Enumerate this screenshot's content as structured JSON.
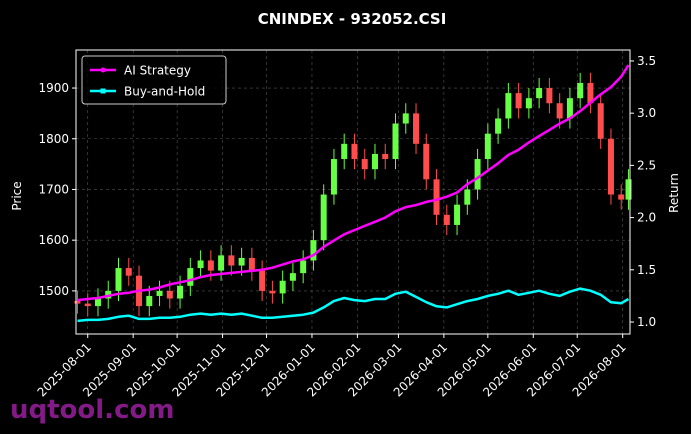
{
  "chart_data": {
    "type": "candlestick",
    "title": "CNINDEX - 932052.CSI",
    "ylabel": "Price",
    "y2label": "Return",
    "watermark": "uqtool.com",
    "x": [
      "2025-07-25",
      "2025-08-01",
      "2025-08-08",
      "2025-08-15",
      "2025-08-22",
      "2025-08-29",
      "2025-09-05",
      "2025-09-12",
      "2025-09-19",
      "2025-09-26",
      "2025-10-03",
      "2025-10-10",
      "2025-10-17",
      "2025-10-24",
      "2025-10-31",
      "2025-11-07",
      "2025-11-14",
      "2025-11-21",
      "2025-11-28",
      "2025-12-05",
      "2025-12-12",
      "2025-12-19",
      "2025-12-26",
      "2026-01-02",
      "2026-01-09",
      "2026-01-16",
      "2026-01-23",
      "2026-01-30",
      "2026-02-06",
      "2026-02-13",
      "2026-02-20",
      "2026-02-27",
      "2026-03-06",
      "2026-03-13",
      "2026-03-20",
      "2026-03-27",
      "2026-04-03",
      "2026-04-10",
      "2026-04-17",
      "2026-04-24",
      "2026-05-01",
      "2026-05-08",
      "2026-05-15",
      "2026-05-22",
      "2026-05-29",
      "2026-06-05",
      "2026-06-12",
      "2026-06-19",
      "2026-06-26",
      "2026-07-03",
      "2026-07-10",
      "2026-07-17",
      "2026-07-24",
      "2026-07-31",
      "2026-08-05"
    ],
    "open": [
      1480,
      1475,
      1470,
      1485,
      1500,
      1545,
      1530,
      1470,
      1490,
      1500,
      1485,
      1510,
      1545,
      1560,
      1540,
      1570,
      1550,
      1565,
      1540,
      1500,
      1495,
      1520,
      1535,
      1560,
      1600,
      1690,
      1760,
      1790,
      1760,
      1740,
      1770,
      1760,
      1830,
      1850,
      1790,
      1720,
      1650,
      1630,
      1670,
      1700,
      1760,
      1810,
      1840,
      1890,
      1860,
      1880,
      1900,
      1870,
      1840,
      1880,
      1910,
      1870,
      1800,
      1690,
      1680
    ],
    "high": [
      1500,
      1495,
      1505,
      1520,
      1565,
      1565,
      1550,
      1510,
      1520,
      1520,
      1530,
      1565,
      1580,
      1580,
      1590,
      1590,
      1585,
      1585,
      1560,
      1520,
      1540,
      1555,
      1580,
      1620,
      1710,
      1780,
      1810,
      1810,
      1780,
      1790,
      1790,
      1850,
      1870,
      1870,
      1810,
      1740,
      1670,
      1690,
      1720,
      1780,
      1830,
      1860,
      1910,
      1910,
      1900,
      1920,
      1920,
      1890,
      1900,
      1930,
      1930,
      1890,
      1820,
      1710,
      1740
    ],
    "low": [
      1455,
      1450,
      1450,
      1465,
      1480,
      1510,
      1450,
      1450,
      1470,
      1465,
      1465,
      1490,
      1525,
      1520,
      1520,
      1530,
      1530,
      1520,
      1480,
      1475,
      1475,
      1500,
      1515,
      1540,
      1580,
      1670,
      1740,
      1740,
      1720,
      1720,
      1740,
      1740,
      1810,
      1770,
      1700,
      1630,
      1610,
      1610,
      1650,
      1680,
      1740,
      1790,
      1820,
      1840,
      1840,
      1860,
      1850,
      1820,
      1820,
      1860,
      1850,
      1780,
      1670,
      1660,
      1660
    ],
    "close": [
      1475,
      1470,
      1485,
      1500,
      1545,
      1530,
      1470,
      1490,
      1500,
      1485,
      1510,
      1545,
      1560,
      1540,
      1570,
      1550,
      1565,
      1540,
      1500,
      1495,
      1520,
      1535,
      1560,
      1600,
      1690,
      1760,
      1790,
      1760,
      1740,
      1770,
      1760,
      1830,
      1850,
      1790,
      1720,
      1650,
      1630,
      1670,
      1700,
      1760,
      1810,
      1840,
      1890,
      1860,
      1880,
      1900,
      1870,
      1840,
      1880,
      1910,
      1870,
      1800,
      1690,
      1680,
      1720
    ],
    "up_color": "#66ff44",
    "down_color": "#ff4d4d",
    "series": [
      {
        "name": "AI Strategy",
        "color": "#ff00ff",
        "axis": "y2",
        "values": [
          1.21,
          1.22,
          1.23,
          1.25,
          1.27,
          1.28,
          1.3,
          1.31,
          1.33,
          1.36,
          1.38,
          1.4,
          1.43,
          1.45,
          1.46,
          1.47,
          1.48,
          1.49,
          1.5,
          1.52,
          1.55,
          1.58,
          1.6,
          1.64,
          1.72,
          1.78,
          1.84,
          1.88,
          1.92,
          1.96,
          2.0,
          2.06,
          2.1,
          2.12,
          2.15,
          2.17,
          2.2,
          2.24,
          2.32,
          2.38,
          2.45,
          2.52,
          2.6,
          2.65,
          2.72,
          2.78,
          2.84,
          2.9,
          2.95,
          3.02,
          3.1,
          3.18,
          3.25,
          3.35,
          3.46
        ]
      },
      {
        "name": "Buy-and-Hold",
        "color": "#00ffff",
        "axis": "y2",
        "values": [
          1.01,
          1.02,
          1.02,
          1.03,
          1.05,
          1.06,
          1.03,
          1.03,
          1.04,
          1.04,
          1.05,
          1.07,
          1.08,
          1.07,
          1.08,
          1.07,
          1.08,
          1.06,
          1.04,
          1.04,
          1.05,
          1.06,
          1.07,
          1.09,
          1.14,
          1.2,
          1.23,
          1.21,
          1.2,
          1.22,
          1.22,
          1.27,
          1.29,
          1.24,
          1.19,
          1.15,
          1.14,
          1.17,
          1.2,
          1.22,
          1.25,
          1.27,
          1.3,
          1.26,
          1.28,
          1.3,
          1.27,
          1.25,
          1.29,
          1.32,
          1.3,
          1.26,
          1.19,
          1.18,
          1.22
        ]
      }
    ],
    "xlim": [
      "2025-07-24",
      "2026-08-06"
    ],
    "xticks": [
      "2025-08-01",
      "2025-09-01",
      "2025-10-01",
      "2025-11-01",
      "2025-12-01",
      "2026-01-01",
      "2026-02-01",
      "2026-03-01",
      "2026-04-01",
      "2026-05-01",
      "2026-06-01",
      "2026-07-01",
      "2026-08-01"
    ],
    "ylim": [
      1415,
      1975
    ],
    "yticks": [
      1500,
      1600,
      1700,
      1800,
      1900
    ],
    "y2lim": [
      0.885,
      3.605
    ],
    "y2ticks": [
      {
        "value": 1,
        "label": "1.0"
      },
      1.5,
      {
        "value": 2,
        "label": "2.0"
      },
      2.5,
      {
        "value": 3,
        "label": "3.0"
      },
      3.5
    ],
    "grid": true,
    "legend": "upper left"
  }
}
